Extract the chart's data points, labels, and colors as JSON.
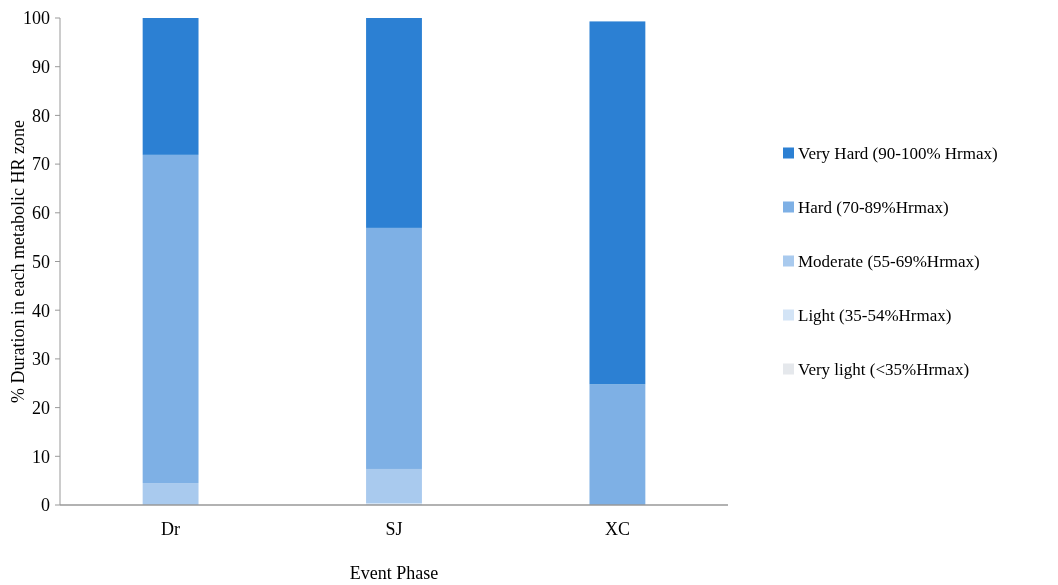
{
  "chart_data": {
    "type": "bar",
    "stacked": true,
    "xlabel": "Event Phase",
    "ylabel": "% Duration in each metabolic HR zone",
    "categories": [
      "Dr",
      "SJ",
      "XC"
    ],
    "series": [
      {
        "name": "Very light (<35%Hrmax)",
        "color": "#e5e8ec",
        "values": [
          0,
          0,
          0
        ]
      },
      {
        "name": "Light (35-54%Hrmax)",
        "color": "#d3e4f6",
        "values": [
          0,
          0.4,
          0
        ]
      },
      {
        "name": "Moderate (55-69%Hrmax)",
        "color": "#a9caee",
        "values": [
          4.5,
          7.0,
          0
        ]
      },
      {
        "name": "Hard (70-89%Hrmax)",
        "color": "#7eb0e5",
        "values": [
          67.4,
          49.5,
          24.8
        ]
      },
      {
        "name": "Very Hard (90-100% Hrmax)",
        "color": "#2c80d3",
        "values": [
          28.1,
          43.1,
          74.5
        ]
      }
    ],
    "ylim": [
      0,
      100
    ],
    "yticks": [
      0,
      10,
      20,
      30,
      40,
      50,
      60,
      70,
      80,
      90,
      100
    ],
    "legend": "right"
  }
}
